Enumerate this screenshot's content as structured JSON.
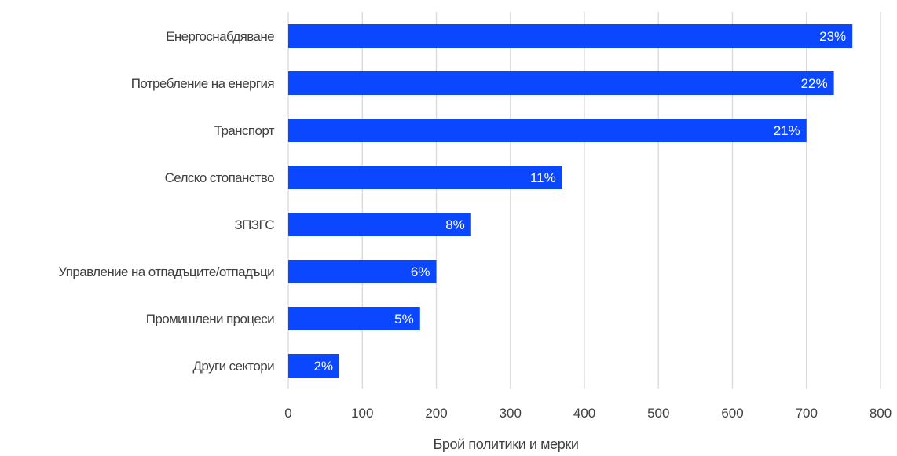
{
  "chart_data": {
    "type": "bar",
    "orientation": "horizontal",
    "categories": [
      "Енергоснабдяване",
      "Потребление на енергия",
      "Транспорт",
      "Селско стопанство",
      "ЗПЗГС",
      "Управление на отпадъците/отпадъци",
      "Промишлени процеси",
      "Други сектори"
    ],
    "values": [
      762,
      737,
      700,
      370,
      247,
      200,
      178,
      69
    ],
    "data_labels": [
      "23%",
      "22%",
      "21%",
      "11%",
      "8%",
      "6%",
      "5%",
      "2%"
    ],
    "xlabel": "Брой политики и мерки",
    "ylabel": "",
    "xlim": [
      0,
      800
    ],
    "xticks": [
      0,
      100,
      200,
      300,
      400,
      500,
      600,
      700,
      800
    ],
    "grid": true,
    "legend": "none",
    "bar_color": "#0a47ff"
  }
}
